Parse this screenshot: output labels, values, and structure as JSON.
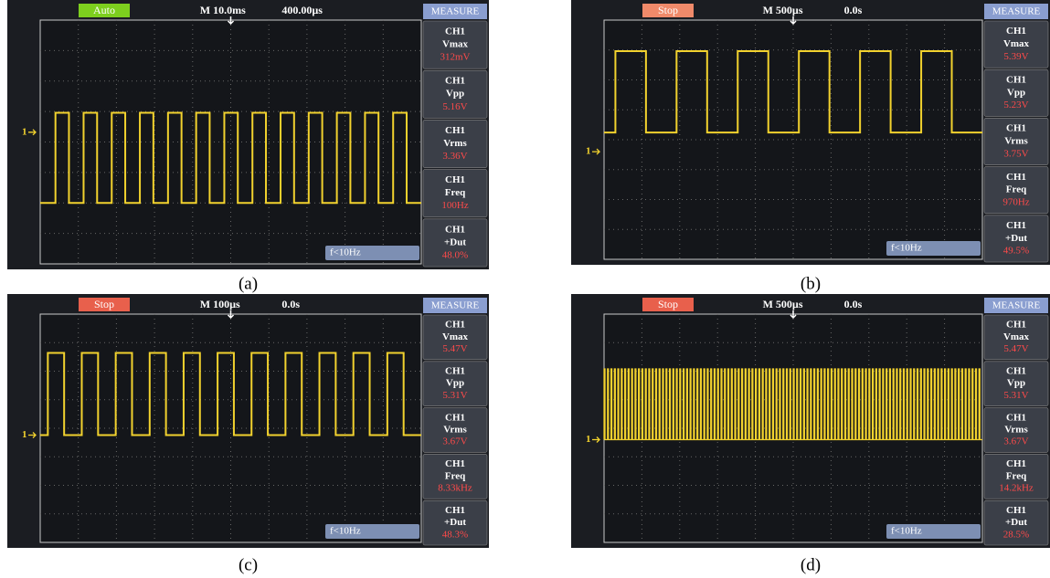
{
  "panels": [
    {
      "status": "Auto",
      "timebase": "M 10.0ms",
      "offset": "400.00µs",
      "ch_marker": "1",
      "measure_title": "MEASURE",
      "measurements": [
        {
          "channel": "CH1",
          "label": "Vmax",
          "value": "312mV"
        },
        {
          "channel": "CH1",
          "label": "Vpp",
          "value": "5.16V"
        },
        {
          "channel": "CH1",
          "label": "Vrms",
          "value": "3.36V"
        },
        {
          "channel": "CH1",
          "label": "Freq",
          "value": "100Hz"
        },
        {
          "channel": "CH1",
          "label": "+Dut",
          "value": "48.0%"
        }
      ],
      "trigger": "f<10Hz",
      "caption": "(a)"
    },
    {
      "status": "Stop",
      "timebase": "M 500µs",
      "offset": "0.0s",
      "ch_marker": "1",
      "measure_title": "MEASURE",
      "measurements": [
        {
          "channel": "CH1",
          "label": "Vmax",
          "value": "5.39V"
        },
        {
          "channel": "CH1",
          "label": "Vpp",
          "value": "5.23V"
        },
        {
          "channel": "CH1",
          "label": "Vrms",
          "value": "3.75V"
        },
        {
          "channel": "CH1",
          "label": "Freq",
          "value": "970Hz"
        },
        {
          "channel": "CH1",
          "label": "+Dut",
          "value": "49.5%"
        }
      ],
      "trigger": "f<10Hz",
      "caption": "(b)"
    },
    {
      "status": "Stop",
      "timebase": "M 100µs",
      "offset": "0.0s",
      "ch_marker": "1",
      "measure_title": "MEASURE",
      "measurements": [
        {
          "channel": "CH1",
          "label": "Vmax",
          "value": "5.47V"
        },
        {
          "channel": "CH1",
          "label": "Vpp",
          "value": "5.31V"
        },
        {
          "channel": "CH1",
          "label": "Vrms",
          "value": "3.67V"
        },
        {
          "channel": "CH1",
          "label": "Freq",
          "value": "8.33kHz"
        },
        {
          "channel": "CH1",
          "label": "+Dut",
          "value": "48.3%"
        }
      ],
      "trigger": "f<10Hz",
      "caption": "(c)"
    },
    {
      "status": "Stop",
      "timebase": "M 500µs",
      "offset": "0.0s",
      "ch_marker": "1",
      "measure_title": "MEASURE",
      "measurements": [
        {
          "channel": "CH1",
          "label": "Vmax",
          "value": "5.47V"
        },
        {
          "channel": "CH1",
          "label": "Vpp",
          "value": "5.31V"
        },
        {
          "channel": "CH1",
          "label": "Vrms",
          "value": "3.67V"
        },
        {
          "channel": "CH1",
          "label": "Freq",
          "value": "14.2kHz"
        },
        {
          "channel": "CH1",
          "label": "+Dut",
          "value": "28.5%"
        }
      ],
      "trigger": "f<10Hz",
      "caption": "(d)"
    }
  ]
}
